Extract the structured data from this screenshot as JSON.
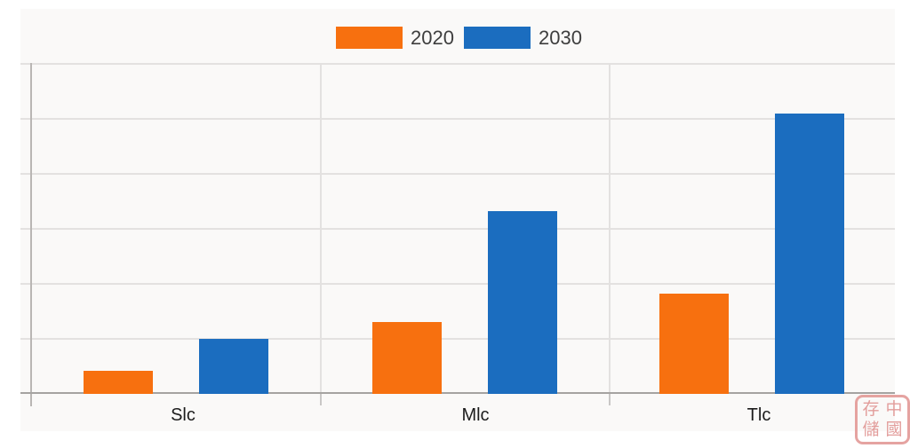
{
  "chart_data": {
    "type": "bar",
    "categories": [
      "Slc",
      "Mlc",
      "Tlc"
    ],
    "series": [
      {
        "name": "2020",
        "color": "#f7700f",
        "values": [
          4.2,
          13.1,
          18.2
        ]
      },
      {
        "name": "2030",
        "color": "#1b6dbf",
        "values": [
          10,
          33.2,
          50.9
        ]
      }
    ],
    "title": "",
    "xlabel": "",
    "ylabel": "",
    "ylim": [
      0,
      60
    ],
    "gridline_step": 10,
    "grid": true,
    "legend_position": "top-center",
    "y_tick_labels_visible": false,
    "background": "#faf9f8"
  },
  "watermark": {
    "chars": [
      "存",
      "中",
      "儲",
      "國"
    ],
    "color": "#e09492"
  }
}
